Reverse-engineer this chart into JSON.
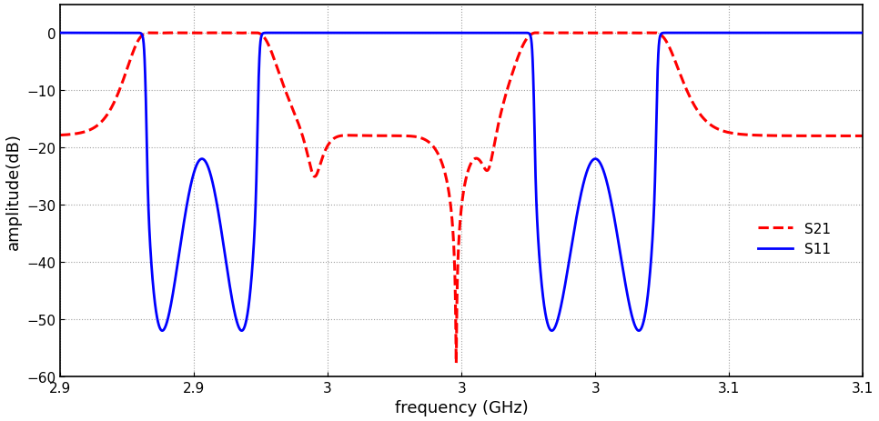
{
  "title": "",
  "xlabel": "frequency (GHz)",
  "ylabel": "amplitude(dB)",
  "xlim": [
    2.85,
    3.15
  ],
  "ylim": [
    -60,
    5
  ],
  "yticks": [
    0,
    -10,
    -20,
    -30,
    -40,
    -50,
    -60
  ],
  "xticks": [
    2.85,
    2.9,
    2.95,
    3.0,
    3.05,
    3.1,
    3.15
  ],
  "s21_color": "#FF0000",
  "s11_color": "#0000FF",
  "background_color": "#FFFFFF",
  "legend_labels": [
    "S21",
    "S11"
  ],
  "grid_color": "#888888",
  "f1_lo": 2.882,
  "f1_hi": 2.924,
  "f2_lo": 3.027,
  "f2_hi": 3.073,
  "f_tz": 2.998
}
